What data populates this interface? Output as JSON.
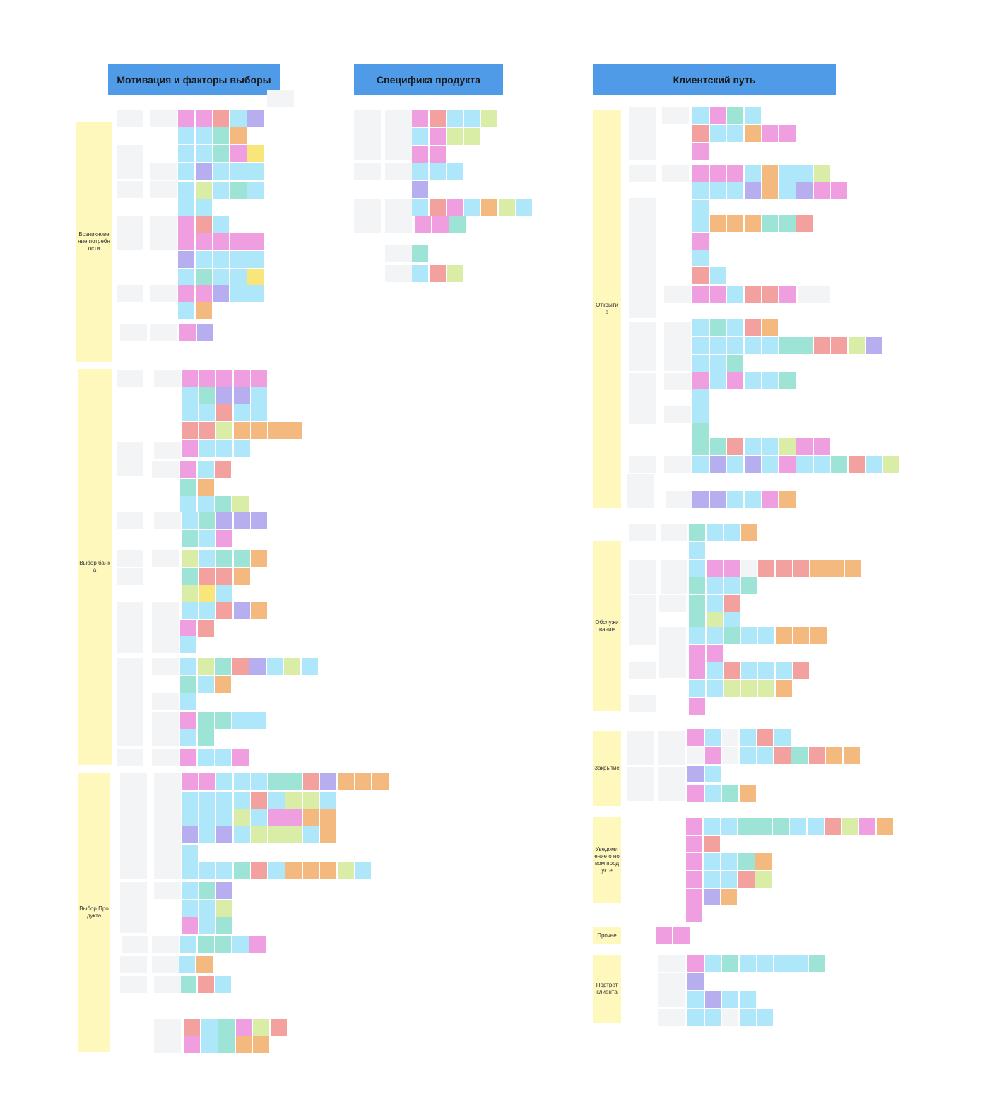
{
  "headers": [
    "Мотивация и факторы выборы",
    "Специфика продукта",
    "Клиентский путь"
  ],
  "left_sections": [
    "Возникновение потребности",
    "Выбор банка",
    "Выбор Продукта"
  ],
  "right_sections": [
    "Открытие",
    "Обслуживание",
    "Закрытие",
    "Уведомление о новом продукте",
    "Прочее",
    "Портрет клиента"
  ]
}
